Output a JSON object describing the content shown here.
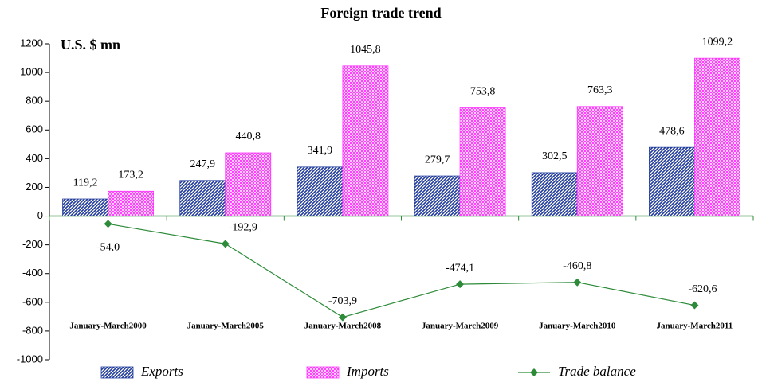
{
  "chart_data": {
    "type": "bar",
    "title": "Foreign trade trend",
    "y_label": "U.S. $ mn",
    "categories": [
      "January-March2000",
      "January-March2005",
      "January-March2008",
      "January-March2009",
      "January-March2010",
      "January-March2011"
    ],
    "series": [
      {
        "name": "Exports",
        "type": "bar",
        "color": "#1f3a9a",
        "values": [
          119.2,
          247.9,
          341.9,
          279.7,
          302.5,
          478.6
        ],
        "value_labels": [
          "119,2",
          "247,9",
          "341,9",
          "279,7",
          "302,5",
          "478,6"
        ]
      },
      {
        "name": "Imports",
        "type": "bar",
        "color": "#ff33ff",
        "values": [
          173.2,
          440.8,
          1045.8,
          753.8,
          763.3,
          1099.2
        ],
        "value_labels": [
          "173,2",
          "440,8",
          "1045,8",
          "753,8",
          "763,3",
          "1099,2"
        ]
      },
      {
        "name": "Trade balance",
        "type": "line",
        "color": "#2e8b3a",
        "values": [
          -54.0,
          -192.9,
          -703.9,
          -474.1,
          -460.8,
          -620.6
        ],
        "value_labels": [
          "-54,0",
          "-192,9",
          "-703,9",
          "-474,1",
          "-460,8",
          "-620,6"
        ]
      }
    ],
    "ylim": [
      -1000,
      1200
    ],
    "yticks": [
      -1000,
      -800,
      -600,
      -400,
      -200,
      0,
      200,
      400,
      600,
      800,
      1000,
      1200
    ]
  }
}
